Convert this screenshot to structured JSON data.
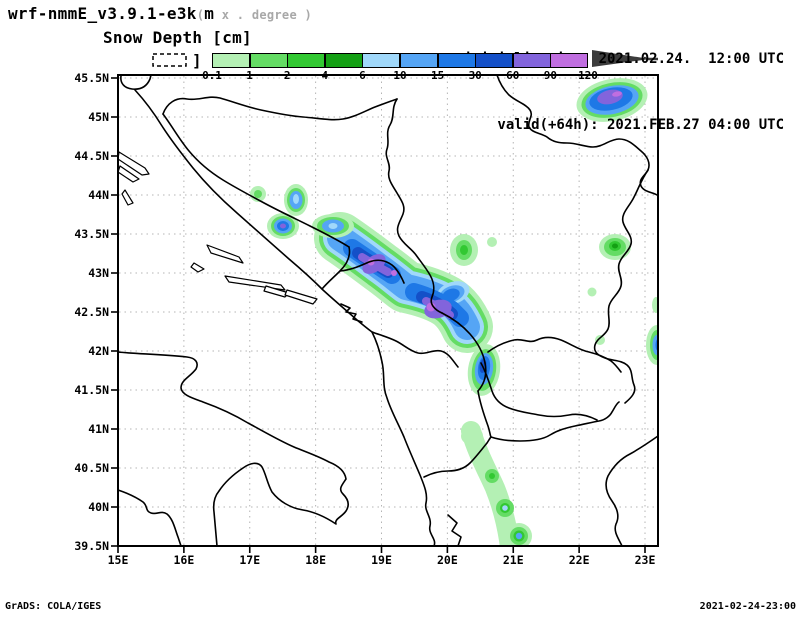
{
  "header": {
    "model_name": "wrf-nmmE_v3.9.1-e3k",
    "model_name_suffix": "m",
    "grid_note_open": "(",
    "grid_note": " x . degree )",
    "field_title": "Snow Depth [cm]",
    "init_line": "initialisation: 2021.02.24.  12:00 UTC",
    "valid_line": "valid(+64h): 2021.FEB.27 04:00 UTC"
  },
  "colorbar": {
    "levels": [
      "0.1",
      "1",
      "2",
      "4",
      "6",
      "10",
      "15",
      "30",
      "60",
      "90",
      "120"
    ],
    "colors": [
      "#b4f0b4",
      "#64dc64",
      "#32c832",
      "#14a014",
      "#a0d8fa",
      "#55a5f5",
      "#1e78e6",
      "#1450c8",
      "#8264dc",
      "#c06ee0"
    ],
    "overflow_color": "#3c3c3c",
    "underflow_marker": "]"
  },
  "map": {
    "lat_labels": [
      "45.5N",
      "45N",
      "44.5N",
      "44N",
      "43.5N",
      "43N",
      "42.5N",
      "42N",
      "41.5N",
      "41N",
      "40.5N",
      "40N",
      "39.5N"
    ],
    "lon_labels": [
      "15E",
      "16E",
      "17E",
      "18E",
      "19E",
      "20E",
      "21E",
      "22E",
      "23E"
    ],
    "grid_color": "#b4b4b4"
  },
  "footer": {
    "credit": "GrADS: COLA/IGES",
    "timestamp": "2021-02-24-23:00"
  }
}
